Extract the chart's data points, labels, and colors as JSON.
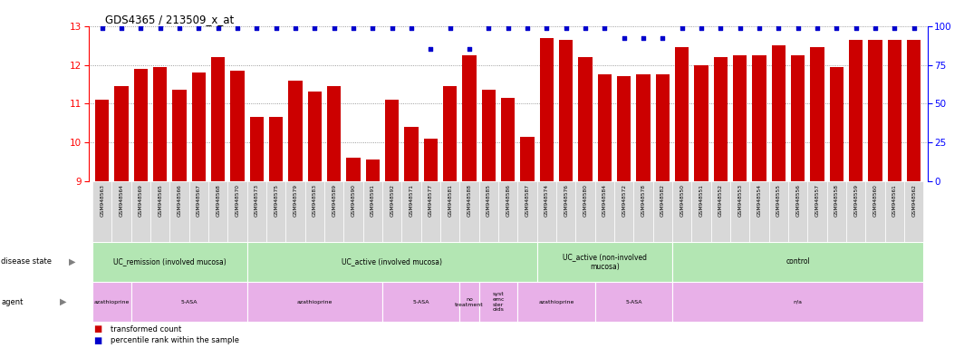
{
  "title": "GDS4365 / 213509_x_at",
  "samples": [
    "GSM948563",
    "GSM948564",
    "GSM948569",
    "GSM948565",
    "GSM948566",
    "GSM948567",
    "GSM948568",
    "GSM948570",
    "GSM948573",
    "GSM948575",
    "GSM948579",
    "GSM948583",
    "GSM948589",
    "GSM948590",
    "GSM948591",
    "GSM948592",
    "GSM948571",
    "GSM948577",
    "GSM948581",
    "GSM948588",
    "GSM948585",
    "GSM948586",
    "GSM948587",
    "GSM948574",
    "GSM948576",
    "GSM948580",
    "GSM948584",
    "GSM948572",
    "GSM948578",
    "GSM948582",
    "GSM948550",
    "GSM948551",
    "GSM948552",
    "GSM948553",
    "GSM948554",
    "GSM948555",
    "GSM948556",
    "GSM948557",
    "GSM948558",
    "GSM948559",
    "GSM948560",
    "GSM948561",
    "GSM948562"
  ],
  "bar_values": [
    11.1,
    11.45,
    11.9,
    11.95,
    11.35,
    11.8,
    12.2,
    11.85,
    10.65,
    10.65,
    11.6,
    11.3,
    11.45,
    9.6,
    9.55,
    11.1,
    10.4,
    10.1,
    11.45,
    12.25,
    11.35,
    11.15,
    10.15,
    12.7,
    12.65,
    12.2,
    11.75,
    11.7,
    11.75,
    11.75,
    12.45,
    12.0,
    12.2,
    12.25,
    12.25,
    12.5,
    12.25,
    12.45,
    11.95,
    12.65,
    12.65,
    12.65,
    12.65
  ],
  "percentile_values": [
    99,
    99,
    99,
    99,
    99,
    99,
    99,
    99,
    99,
    99,
    99,
    99,
    99,
    99,
    99,
    99,
    99,
    85,
    99,
    85,
    99,
    99,
    99,
    99,
    99,
    99,
    99,
    92,
    92,
    92,
    99,
    99,
    99,
    99,
    99,
    99,
    99,
    99,
    99,
    99,
    99,
    99,
    99
  ],
  "ylim_left": [
    9,
    13
  ],
  "ylim_right": [
    0,
    100
  ],
  "yticks_left": [
    9,
    10,
    11,
    12,
    13
  ],
  "yticks_right": [
    0,
    25,
    50,
    75,
    100
  ],
  "bar_color": "#cc0000",
  "dot_color": "#0000cc",
  "background_color": "#ffffff",
  "xtick_bg_color": "#d8d8d8",
  "disease_state_groups": [
    {
      "label": "UC_remission (involved mucosa)",
      "start": 0,
      "end": 7,
      "color": "#b3e6b3"
    },
    {
      "label": "UC_active (involved mucosa)",
      "start": 8,
      "end": 22,
      "color": "#b3e6b3"
    },
    {
      "label": "UC_active (non-involved\nmucosa)",
      "start": 23,
      "end": 29,
      "color": "#b3e6b3"
    },
    {
      "label": "control",
      "start": 30,
      "end": 42,
      "color": "#b3e6b3"
    }
  ],
  "agent_groups": [
    {
      "label": "azathioprine",
      "start": 0,
      "end": 1,
      "color": "#e8b0e8"
    },
    {
      "label": "5-ASA",
      "start": 2,
      "end": 7,
      "color": "#e8b0e8"
    },
    {
      "label": "azathioprine",
      "start": 8,
      "end": 14,
      "color": "#e8b0e8"
    },
    {
      "label": "5-ASA",
      "start": 15,
      "end": 18,
      "color": "#e8b0e8"
    },
    {
      "label": "no\ntreatment",
      "start": 19,
      "end": 19,
      "color": "#e8b0e8"
    },
    {
      "label": "syst\nemc\nster\noids",
      "start": 20,
      "end": 21,
      "color": "#e8b0e8"
    },
    {
      "label": "azathioprine",
      "start": 22,
      "end": 25,
      "color": "#e8b0e8"
    },
    {
      "label": "5-ASA",
      "start": 26,
      "end": 29,
      "color": "#e8b0e8"
    },
    {
      "label": "n/a",
      "start": 30,
      "end": 42,
      "color": "#e8b0e8"
    }
  ]
}
